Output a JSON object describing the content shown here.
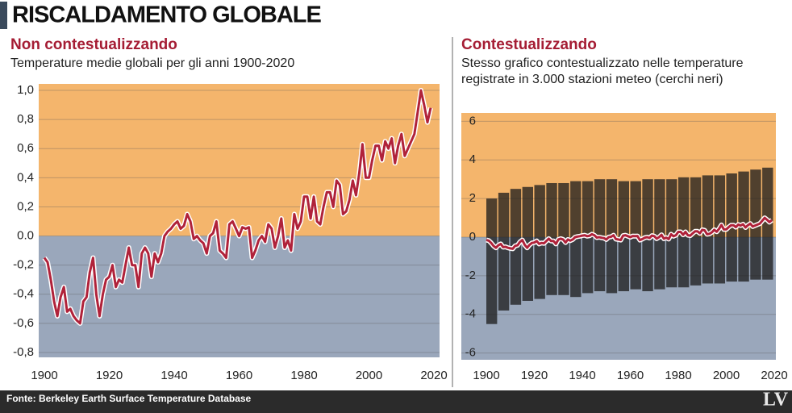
{
  "header": {
    "title": "RISCALDAMENTO GLOBALE"
  },
  "chart_data": [
    {
      "type": "line",
      "title": "Non contestualizzando",
      "subtitle": "Temperature medie globali per gli anni 1900-2020",
      "x": [
        1900,
        1901,
        1902,
        1903,
        1904,
        1905,
        1906,
        1907,
        1908,
        1909,
        1910,
        1911,
        1912,
        1913,
        1914,
        1915,
        1916,
        1917,
        1918,
        1919,
        1920,
        1921,
        1922,
        1923,
        1924,
        1925,
        1926,
        1927,
        1928,
        1929,
        1930,
        1931,
        1932,
        1933,
        1934,
        1935,
        1936,
        1937,
        1938,
        1939,
        1940,
        1941,
        1942,
        1943,
        1944,
        1945,
        1946,
        1947,
        1948,
        1949,
        1950,
        1951,
        1952,
        1953,
        1954,
        1955,
        1956,
        1957,
        1958,
        1959,
        1960,
        1961,
        1962,
        1963,
        1964,
        1965,
        1966,
        1967,
        1968,
        1969,
        1970,
        1971,
        1972,
        1973,
        1974,
        1975,
        1976,
        1977,
        1978,
        1979,
        1980,
        1981,
        1982,
        1983,
        1984,
        1985,
        1986,
        1987,
        1988,
        1989,
        1990,
        1991,
        1992,
        1993,
        1994,
        1995,
        1996,
        1997,
        1998,
        1999,
        2000,
        2001,
        2002,
        2003,
        2004,
        2005,
        2006,
        2007,
        2008,
        2009,
        2010,
        2011,
        2012,
        2013,
        2014,
        2015,
        2016,
        2017,
        2018,
        2019
      ],
      "series": [
        {
          "color": "#b0223a",
          "values": [
            -0.15,
            -0.18,
            -0.3,
            -0.45,
            -0.55,
            -0.42,
            -0.35,
            -0.52,
            -0.5,
            -0.55,
            -0.58,
            -0.6,
            -0.45,
            -0.42,
            -0.25,
            -0.15,
            -0.4,
            -0.55,
            -0.4,
            -0.3,
            -0.28,
            -0.2,
            -0.35,
            -0.3,
            -0.32,
            -0.2,
            -0.08,
            -0.2,
            -0.2,
            -0.35,
            -0.12,
            -0.08,
            -0.12,
            -0.28,
            -0.12,
            -0.18,
            -0.12,
            0.0,
            0.03,
            0.05,
            0.08,
            0.1,
            0.05,
            0.07,
            0.15,
            0.1,
            -0.02,
            0.0,
            -0.03,
            -0.05,
            -0.12,
            0.0,
            0.02,
            0.1,
            -0.1,
            -0.12,
            -0.15,
            0.08,
            0.1,
            0.05,
            0.0,
            0.06,
            0.05,
            0.06,
            -0.15,
            -0.1,
            -0.03,
            0.0,
            -0.04,
            0.08,
            0.05,
            -0.08,
            0.0,
            0.12,
            -0.08,
            -0.03,
            -0.1,
            0.15,
            0.05,
            0.1,
            0.27,
            0.27,
            0.12,
            0.27,
            0.1,
            0.08,
            0.2,
            0.3,
            0.3,
            0.2,
            0.38,
            0.35,
            0.15,
            0.17,
            0.25,
            0.38,
            0.28,
            0.43,
            0.63,
            0.4,
            0.4,
            0.52,
            0.62,
            0.62,
            0.52,
            0.65,
            0.6,
            0.67,
            0.5,
            0.62,
            0.7,
            0.55,
            0.6,
            0.65,
            0.7,
            0.85,
            1.0,
            0.9,
            0.78,
            0.88
          ]
        }
      ],
      "xlim": [
        1900,
        2020
      ],
      "xticks": [
        1900,
        1920,
        1940,
        1960,
        1980,
        2000,
        2020
      ],
      "ylim": [
        -0.8,
        1.0
      ],
      "yticks": [
        {
          "value": 1.0,
          "label": "1,0"
        },
        {
          "value": 0.8,
          "label": "0,8"
        },
        {
          "value": 0.6,
          "label": "0,6"
        },
        {
          "value": 0.4,
          "label": "0,4"
        },
        {
          "value": 0.2,
          "label": "0,2"
        },
        {
          "value": 0,
          "label": "0.0"
        },
        {
          "value": -0.2,
          "label": "-0,2"
        },
        {
          "value": -0.4,
          "label": "-0,4"
        },
        {
          "value": -0.6,
          "label": "-0,6"
        },
        {
          "value": -0.8,
          "label": "-0,8"
        }
      ],
      "above_color": "#f4b56c",
      "below_color": "#9aa7bb"
    },
    {
      "type": "line",
      "title": "Contestualizzando",
      "subtitle": [
        "Stesso grafico contestualizzato nelle temperature",
        "registrate in 3.000 stazioni meteo (cerchi neri)"
      ],
      "x": [
        1900,
        1901,
        1902,
        1903,
        1904,
        1905,
        1906,
        1907,
        1908,
        1909,
        1910,
        1911,
        1912,
        1913,
        1914,
        1915,
        1916,
        1917,
        1918,
        1919,
        1920,
        1921,
        1922,
        1923,
        1924,
        1925,
        1926,
        1927,
        1928,
        1929,
        1930,
        1931,
        1932,
        1933,
        1934,
        1935,
        1936,
        1937,
        1938,
        1939,
        1940,
        1941,
        1942,
        1943,
        1944,
        1945,
        1946,
        1947,
        1948,
        1949,
        1950,
        1951,
        1952,
        1953,
        1954,
        1955,
        1956,
        1957,
        1958,
        1959,
        1960,
        1961,
        1962,
        1963,
        1964,
        1965,
        1966,
        1967,
        1968,
        1969,
        1970,
        1971,
        1972,
        1973,
        1974,
        1975,
        1976,
        1977,
        1978,
        1979,
        1980,
        1981,
        1982,
        1983,
        1984,
        1985,
        1986,
        1987,
        1988,
        1989,
        1990,
        1991,
        1992,
        1993,
        1994,
        1995,
        1996,
        1997,
        1998,
        1999,
        2000,
        2001,
        2002,
        2003,
        2004,
        2005,
        2006,
        2007,
        2008,
        2009,
        2010,
        2011,
        2012,
        2013,
        2014,
        2015,
        2016,
        2017,
        2018,
        2019
      ],
      "series": [
        {
          "color": "#b0223a",
          "values": [
            -0.15,
            -0.18,
            -0.3,
            -0.45,
            -0.55,
            -0.42,
            -0.35,
            -0.52,
            -0.5,
            -0.55,
            -0.58,
            -0.6,
            -0.45,
            -0.42,
            -0.25,
            -0.15,
            -0.4,
            -0.55,
            -0.4,
            -0.3,
            -0.28,
            -0.2,
            -0.35,
            -0.3,
            -0.32,
            -0.2,
            -0.08,
            -0.2,
            -0.2,
            -0.35,
            -0.12,
            -0.08,
            -0.12,
            -0.28,
            -0.12,
            -0.18,
            -0.12,
            0.0,
            0.03,
            0.05,
            0.08,
            0.1,
            0.05,
            0.07,
            0.15,
            0.1,
            -0.02,
            0.0,
            -0.03,
            -0.05,
            -0.12,
            0.0,
            0.02,
            0.1,
            -0.1,
            -0.12,
            -0.15,
            0.08,
            0.1,
            0.05,
            0.0,
            0.06,
            0.05,
            0.06,
            -0.15,
            -0.1,
            -0.03,
            0.0,
            -0.04,
            0.08,
            0.05,
            -0.08,
            0.0,
            0.12,
            -0.08,
            -0.03,
            -0.1,
            0.15,
            0.05,
            0.1,
            0.27,
            0.27,
            0.12,
            0.27,
            0.1,
            0.08,
            0.2,
            0.3,
            0.3,
            0.2,
            0.38,
            0.35,
            0.15,
            0.17,
            0.25,
            0.38,
            0.28,
            0.43,
            0.63,
            0.4,
            0.4,
            0.52,
            0.62,
            0.62,
            0.52,
            0.65,
            0.6,
            0.67,
            0.5,
            0.62,
            0.7,
            0.55,
            0.6,
            0.65,
            0.7,
            0.85,
            1.0,
            0.9,
            0.78,
            0.88
          ]
        }
      ],
      "stations": {
        "color": "#1a1a1a",
        "x": [
          1900,
          1905,
          1910,
          1915,
          1920,
          1925,
          1930,
          1935,
          1940,
          1945,
          1950,
          1955,
          1960,
          1965,
          1970,
          1975,
          1980,
          1985,
          1990,
          1995,
          2000,
          2005,
          2010,
          2015
        ],
        "low": [
          -4.5,
          -3.8,
          -3.5,
          -3.3,
          -3.2,
          -3.0,
          -3.0,
          -3.1,
          -2.9,
          -2.8,
          -2.9,
          -2.8,
          -2.7,
          -2.8,
          -2.7,
          -2.6,
          -2.6,
          -2.5,
          -2.4,
          -2.4,
          -2.3,
          -2.3,
          -2.2,
          -2.2
        ],
        "high": [
          2.0,
          2.3,
          2.5,
          2.6,
          2.7,
          2.8,
          2.8,
          2.9,
          2.9,
          3.0,
          3.0,
          2.9,
          2.9,
          3.0,
          3.0,
          3.0,
          3.1,
          3.1,
          3.2,
          3.2,
          3.3,
          3.4,
          3.5,
          3.6
        ]
      },
      "xlim": [
        1900,
        2020
      ],
      "xticks": [
        1900,
        1920,
        1940,
        1960,
        1980,
        2000,
        2020
      ],
      "ylim": [
        -6.1,
        6.1
      ],
      "yticks": [
        6,
        4,
        2,
        0,
        -2,
        -4,
        -6
      ],
      "above_color": "#f4b56c",
      "below_color": "#9aa7bb"
    }
  ],
  "footer": {
    "source": "Fonte: Berkeley Earth Surface Temperature Database",
    "logo": "LV"
  }
}
